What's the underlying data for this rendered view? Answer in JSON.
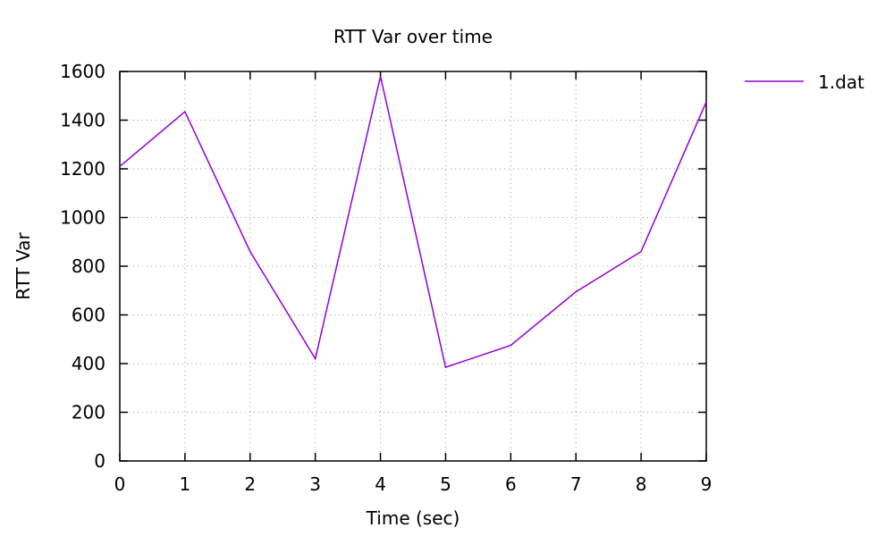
{
  "chart_data": {
    "type": "line",
    "title": "RTT Var over time",
    "xlabel": "Time (sec)",
    "ylabel": "RTT Var",
    "xlim": [
      0,
      9
    ],
    "ylim": [
      0,
      1600
    ],
    "xticks": [
      0,
      1,
      2,
      3,
      4,
      5,
      6,
      7,
      8,
      9
    ],
    "yticks": [
      0,
      200,
      400,
      600,
      800,
      1000,
      1200,
      1400,
      1600
    ],
    "grid": true,
    "legend_position": "outside-top-right",
    "series": [
      {
        "name": "1.dat",
        "color": "#9400d3",
        "x": [
          0,
          1,
          2,
          3,
          4,
          5,
          6,
          7,
          8,
          9
        ],
        "y": [
          1210,
          1435,
          860,
          420,
          1580,
          385,
          475,
          695,
          860,
          1475
        ]
      }
    ]
  }
}
